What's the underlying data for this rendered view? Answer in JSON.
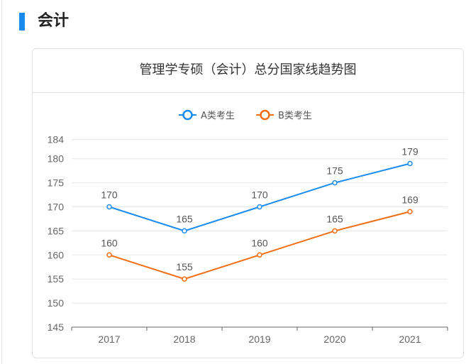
{
  "section": {
    "title": "会计",
    "accent": "#1a8cf0"
  },
  "card": {
    "title": "管理学专硕（会计）总分国家线趋势图"
  },
  "chart_data": {
    "type": "line",
    "title": "管理学专硕（会计）总分国家线趋势图",
    "categories": [
      "2017",
      "2018",
      "2019",
      "2020",
      "2021"
    ],
    "series": [
      {
        "name": "A类考生",
        "values": [
          170,
          165,
          170,
          175,
          179
        ],
        "color": "#1a8cf0"
      },
      {
        "name": "B类考生",
        "values": [
          160,
          155,
          160,
          165,
          169
        ],
        "color": "#f06e14"
      }
    ],
    "yticks": [
      145,
      150,
      155,
      160,
      165,
      170,
      175,
      180,
      184
    ],
    "ylim": [
      145,
      184
    ],
    "grid": true,
    "legend": "top-center",
    "data_labels": true
  }
}
